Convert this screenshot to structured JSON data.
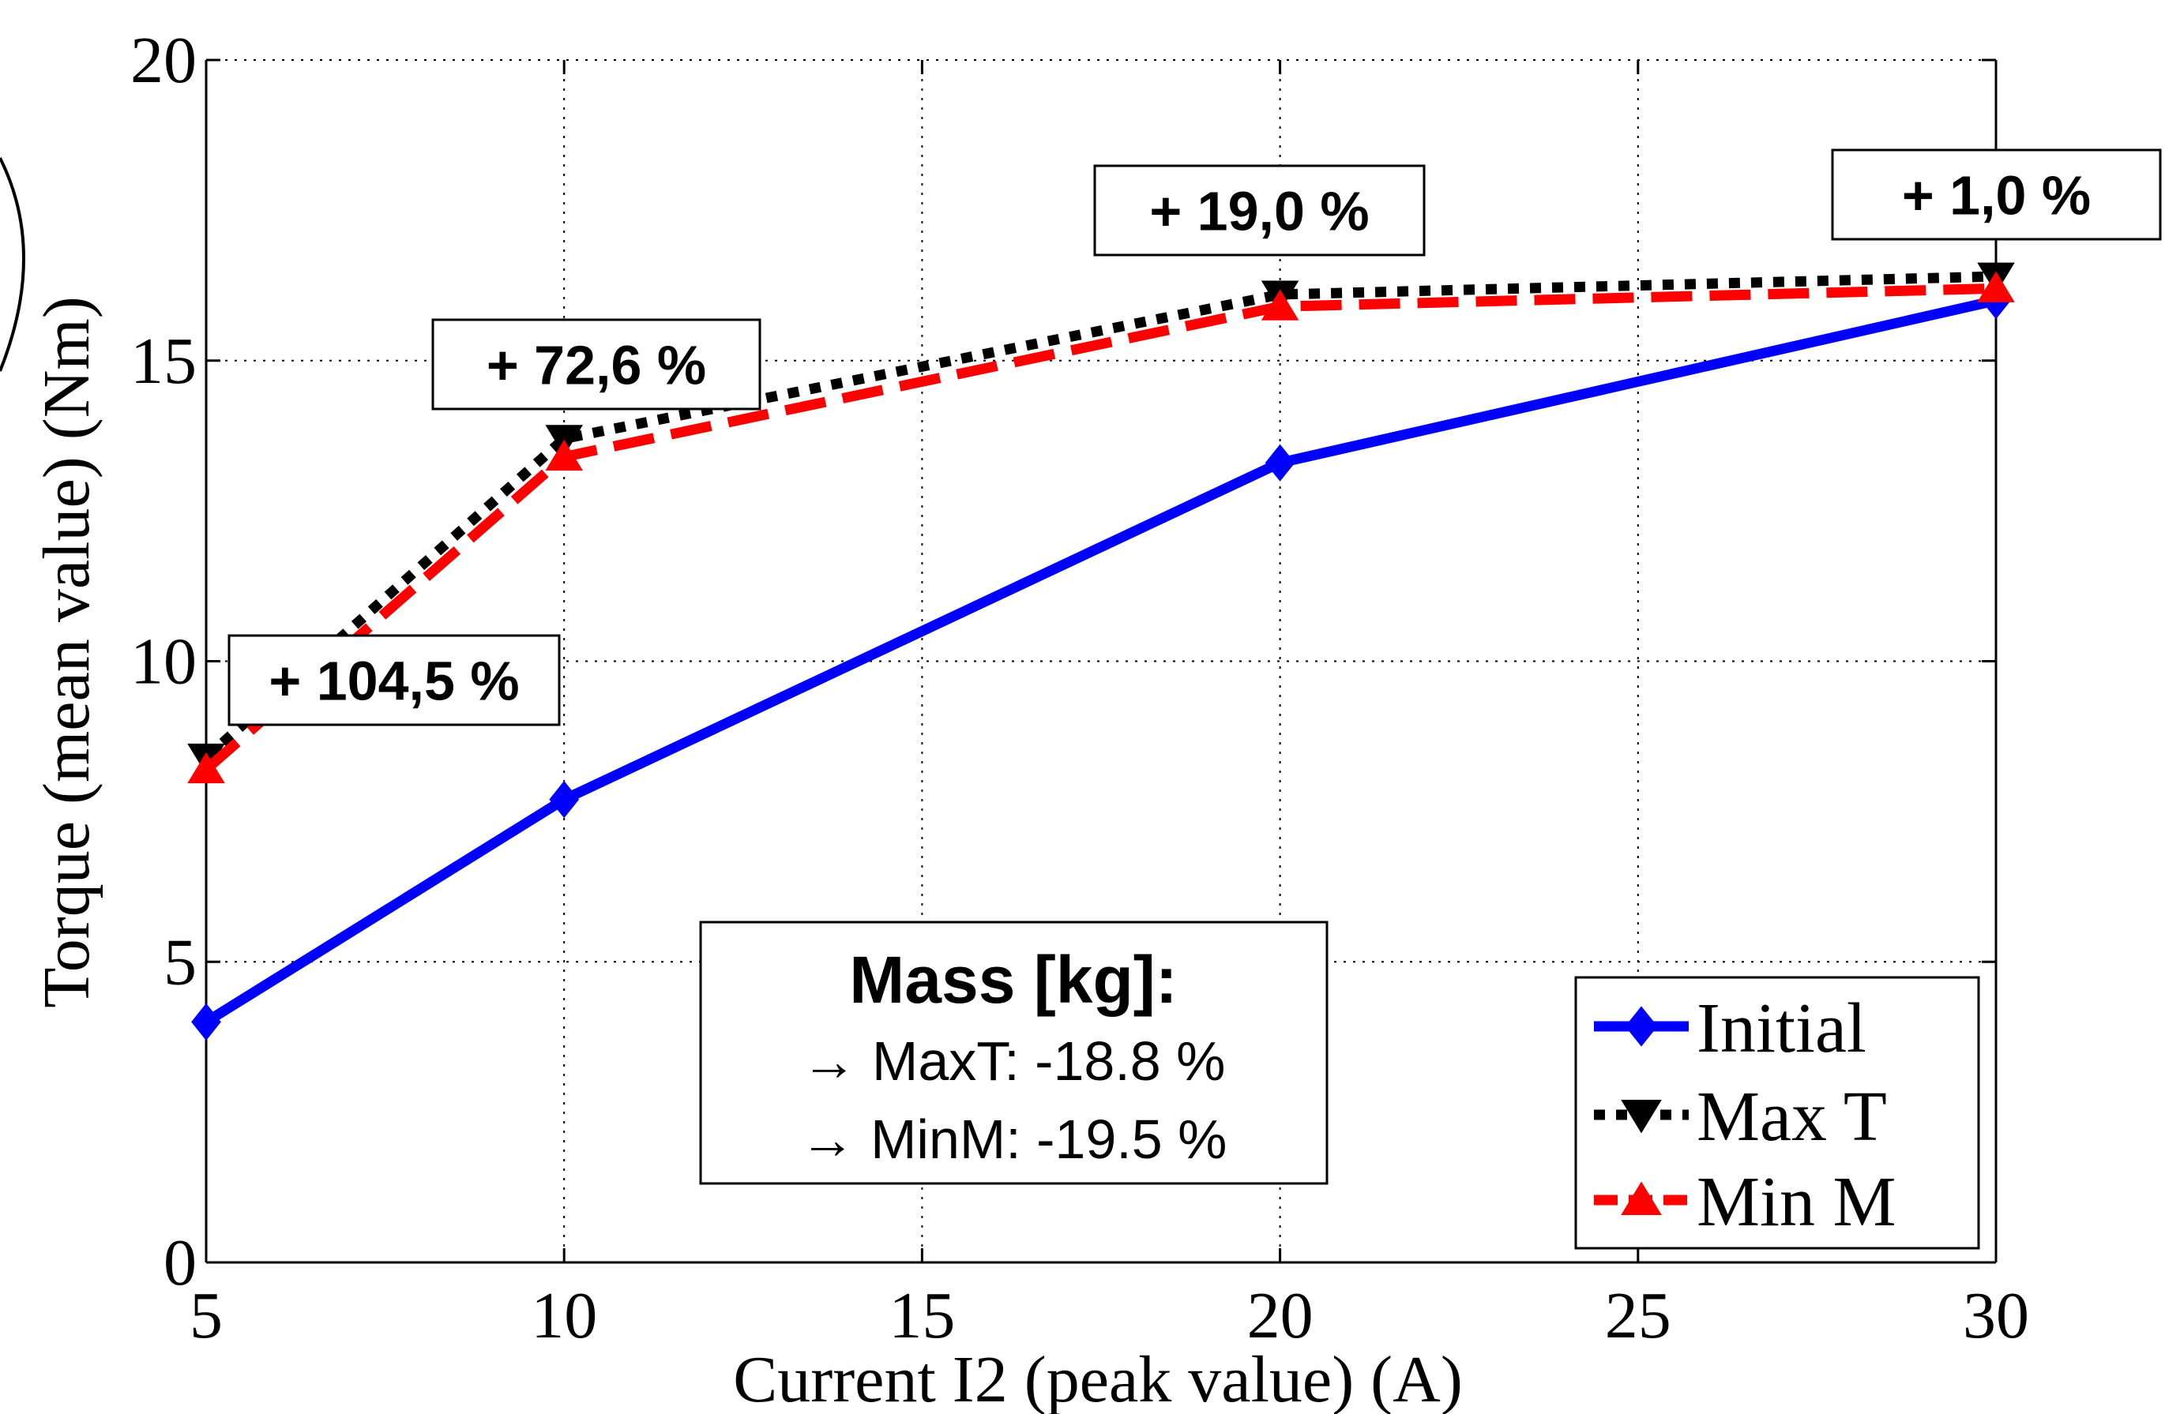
{
  "chart_data": {
    "type": "line",
    "xlabel": "Current I2 (peak value) (A)",
    "ylabel": "Torque (mean value) (Nm)",
    "xlim": [
      5,
      30
    ],
    "ylim": [
      0,
      20
    ],
    "x_ticks": [
      "5",
      "10",
      "15",
      "20",
      "25",
      "30"
    ],
    "y_ticks": [
      "0",
      "5",
      "10",
      "15",
      "20"
    ],
    "grid": true,
    "legend_position": "bottom-right",
    "x": [
      5,
      10,
      20,
      30
    ],
    "series": [
      {
        "name": "Initial",
        "values": [
          4.0,
          7.7,
          13.3,
          16.0
        ],
        "color": "#0000ff",
        "style": "solid",
        "marker": "diamond"
      },
      {
        "name": "Max T",
        "values": [
          8.4,
          13.7,
          16.1,
          16.4
        ],
        "color": "#000000",
        "style": "dotted",
        "marker": "triangle-down"
      },
      {
        "name": "Min M",
        "values": [
          8.2,
          13.4,
          15.9,
          16.2
        ],
        "color": "#ff0000",
        "style": "dashed",
        "marker": "triangle-up"
      }
    ],
    "annotations": [
      {
        "text": "+ 104,5 %",
        "x": 5
      },
      {
        "text": "+ 72,6 %",
        "x": 10
      },
      {
        "text": "+ 19,0 %",
        "x": 20
      },
      {
        "text": "+ 1,0 %",
        "x": 30
      }
    ],
    "mass_box": {
      "title": "Mass [kg]:",
      "lines": [
        "→ MaxT: -18.8 %",
        "→ MinM: -19.5 %"
      ]
    }
  }
}
